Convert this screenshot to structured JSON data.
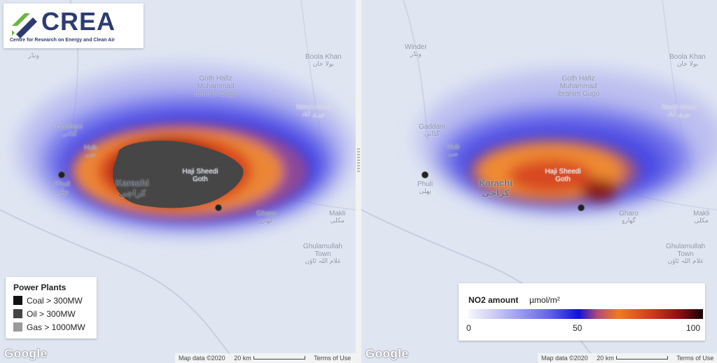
{
  "logo": {
    "wordmark": "CREA",
    "tagline": "Centre for Research on Energy and Clean Air"
  },
  "left_map": {
    "places": [
      {
        "name": "Gaddani",
        "urdu": "گڈانی"
      },
      {
        "name": "Hub",
        "urdu": "حب"
      },
      {
        "name": "Phuli",
        "urdu": "پھلی"
      },
      {
        "name": "Karachi",
        "urdu": "کراچی"
      },
      {
        "name": "Haji Sheedi Goth",
        "urdu": ""
      },
      {
        "name": "Gharo",
        "urdu": "گھارو"
      },
      {
        "name": "Makli",
        "urdu": "مکلی"
      },
      {
        "name": "Ghulamullah Town",
        "urdu": "غلام اللہ ٹاؤن"
      },
      {
        "name": "Goth Hafiz Muhammad Ibrahim Gugo",
        "urdu": ""
      },
      {
        "name": "Noori Abad",
        "urdu": "نوری آباد"
      },
      {
        "name": "Boola Khan",
        "urdu": "بولا خان"
      },
      {
        "name": "",
        "urdu": "ونڈر"
      }
    ],
    "legend": {
      "title": "Power Plants",
      "items": [
        {
          "label": "Coal > 300MW",
          "color": "#111111"
        },
        {
          "label": "Oil > 300MW",
          "color": "#444444"
        },
        {
          "label": "Gas > 1000MW",
          "color": "#9a9a9a"
        }
      ]
    },
    "google": "Google",
    "footer": {
      "map_data": "Map data ©2020",
      "scale": "20 km",
      "terms": "Terms of Use"
    }
  },
  "right_map": {
    "places": [
      {
        "name": "Winder",
        "urdu": "ونڈر"
      },
      {
        "name": "Gaddani",
        "urdu": "گڈانی"
      },
      {
        "name": "Hub",
        "urdu": "حب"
      },
      {
        "name": "Phuli",
        "urdu": "پھلی"
      },
      {
        "name": "Karachi",
        "urdu": "کراچی"
      },
      {
        "name": "Haji Sheedi Goth",
        "urdu": ""
      },
      {
        "name": "Gharo",
        "urdu": "گھارو"
      },
      {
        "name": "Makli",
        "urdu": "مکلی"
      },
      {
        "name": "Ghulamullah Town",
        "urdu": "غلام اللہ ٹاؤن"
      },
      {
        "name": "Goth Hafiz Muhammad Ibrahim Gugo",
        "urdu": ""
      },
      {
        "name": "Noori Abad",
        "urdu": "نوری آباد"
      },
      {
        "name": "Boola Khan",
        "urdu": "بولا خان"
      }
    ],
    "scale_legend": {
      "title": "NO2 amount",
      "unit": "µmol/m²",
      "ticks": [
        "0",
        "50",
        "100"
      ],
      "colors": [
        "#f6f6fc",
        "#1111e0",
        "#f07a22",
        "#8f0d12",
        "#140405"
      ]
    },
    "google": "Google",
    "footer": {
      "map_data": "Map data ©2020",
      "scale": "20 km",
      "terms": "Terms of Use"
    }
  }
}
